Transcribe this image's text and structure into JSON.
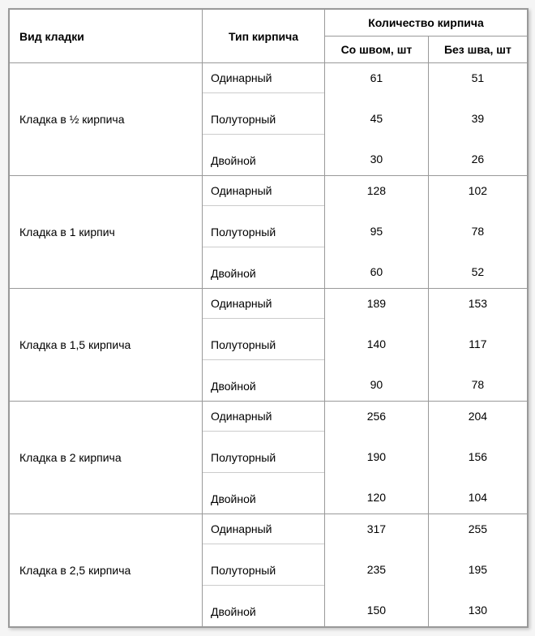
{
  "header": {
    "col1": "Вид кладки",
    "col2": "Тип кирпича",
    "col3_group": "Количество кирпича",
    "col3a": "Со швом, шт",
    "col3b": "Без шва, шт"
  },
  "brick_types": [
    "Одинарный",
    "Полуторный",
    "Двойной"
  ],
  "rows": [
    {
      "type": "Кладка в ½ кирпича",
      "with_seam": [
        61,
        45,
        30
      ],
      "without_seam": [
        51,
        39,
        26
      ]
    },
    {
      "type": "Кладка в 1 кирпич",
      "with_seam": [
        128,
        95,
        60
      ],
      "without_seam": [
        102,
        78,
        52
      ]
    },
    {
      "type": "Кладка в 1,5 кирпича",
      "with_seam": [
        189,
        140,
        90
      ],
      "without_seam": [
        153,
        117,
        78
      ]
    },
    {
      "type": "Кладка в 2 кирпича",
      "with_seam": [
        256,
        190,
        120
      ],
      "without_seam": [
        204,
        156,
        104
      ]
    },
    {
      "type": "Кладка в 2,5 кирпича",
      "with_seam": [
        317,
        235,
        150
      ],
      "without_seam": [
        255,
        195,
        130
      ]
    }
  ],
  "styles": {
    "border_color": "#999999",
    "background_color": "#ffffff",
    "font_size": 14,
    "text_color": "#000000"
  }
}
